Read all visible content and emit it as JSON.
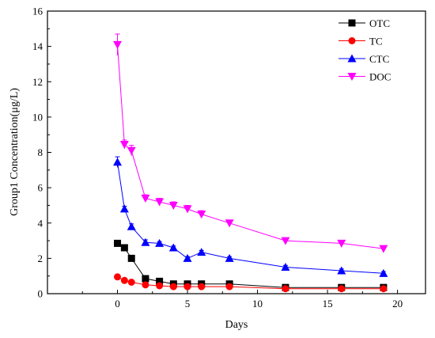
{
  "chart_data": {
    "type": "line",
    "title": "",
    "xlabel": "Days",
    "ylabel": "Group1  Concentration(μg/L)",
    "xlim": [
      -5,
      22
    ],
    "ylim": [
      0,
      16
    ],
    "xticks": [
      0,
      5,
      10,
      15,
      20
    ],
    "yticks": [
      0,
      2,
      4,
      6,
      8,
      10,
      12,
      14,
      16
    ],
    "grid": false,
    "legend_position": "top-right",
    "series": [
      {
        "name": "OTC",
        "color": "#000000",
        "marker": "square",
        "x": [
          0,
          0.5,
          1,
          2,
          3,
          4,
          5,
          6,
          8,
          12,
          16,
          19
        ],
        "y": [
          2.85,
          2.6,
          2.0,
          0.85,
          0.7,
          0.55,
          0.55,
          0.55,
          0.55,
          0.35,
          0.35,
          0.35
        ],
        "err": [
          0.05,
          0.05,
          0.05,
          0.05,
          0.05,
          0.05,
          0.05,
          0.05,
          0.05,
          0.05,
          0.05,
          0.05
        ]
      },
      {
        "name": "TC",
        "color": "#ff0000",
        "marker": "circle",
        "x": [
          0,
          0.5,
          1,
          2,
          3,
          4,
          5,
          6,
          8,
          12,
          16,
          19
        ],
        "y": [
          0.95,
          0.75,
          0.65,
          0.5,
          0.45,
          0.4,
          0.4,
          0.4,
          0.4,
          0.28,
          0.28,
          0.28
        ],
        "err": [
          0.05,
          0.05,
          0.05,
          0.05,
          0.05,
          0.05,
          0.05,
          0.05,
          0.05,
          0.05,
          0.05,
          0.05
        ]
      },
      {
        "name": "CTC",
        "color": "#0000ff",
        "marker": "triangle-up",
        "x": [
          0,
          0.5,
          1,
          2,
          3,
          4,
          5,
          6,
          8,
          12,
          16,
          19
        ],
        "y": [
          7.45,
          4.8,
          3.8,
          2.9,
          2.85,
          2.6,
          2.0,
          2.35,
          2.0,
          1.5,
          1.3,
          1.15
        ],
        "err": [
          0.3,
          0.15,
          0.15,
          0.15,
          0.1,
          0.1,
          0.1,
          0.1,
          0.1,
          0.1,
          0.1,
          0.1
        ]
      },
      {
        "name": "DOC",
        "color": "#ff00ff",
        "marker": "triangle-down",
        "x": [
          0,
          0.5,
          1,
          2,
          3,
          4,
          5,
          6,
          8,
          12,
          16,
          19
        ],
        "y": [
          14.1,
          8.45,
          8.1,
          5.4,
          5.2,
          5.0,
          4.8,
          4.5,
          4.0,
          3.0,
          2.85,
          2.55
        ],
        "err": [
          0.6,
          0.25,
          0.3,
          0.2,
          0.2,
          0.2,
          0.2,
          0.2,
          0.15,
          0.1,
          0.1,
          0.1
        ]
      }
    ]
  }
}
